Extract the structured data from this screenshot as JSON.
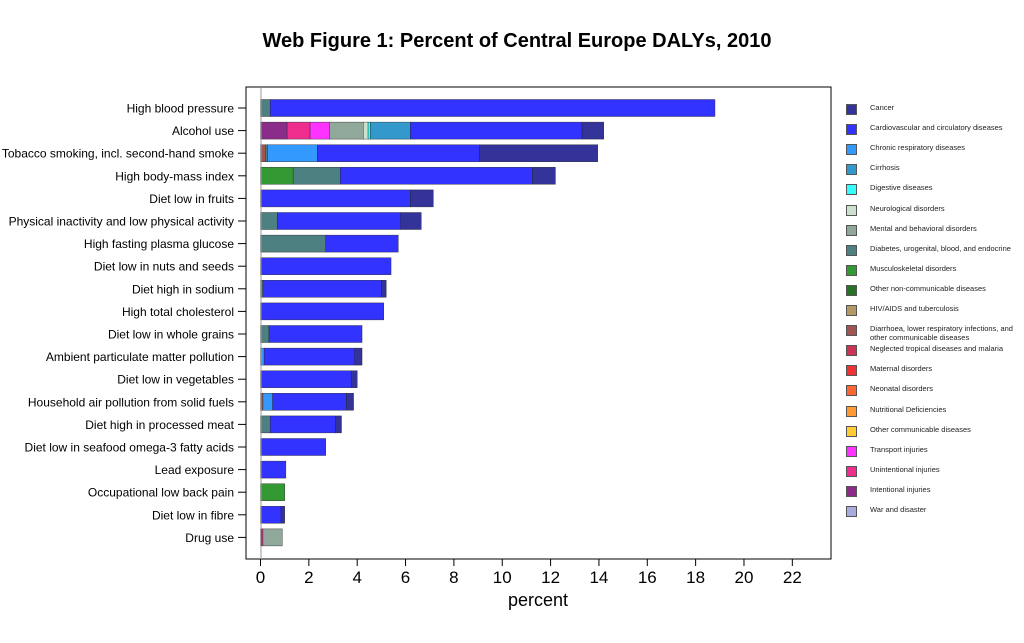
{
  "chart_data": {
    "type": "bar",
    "orientation": "horizontal",
    "stacked": true,
    "title": "Web Figure 1: Percent of Central Europe DALYs, 2010",
    "xlabel": "percent",
    "xlim": [
      -0.6,
      23.6
    ],
    "xticks": [
      0,
      2,
      4,
      6,
      8,
      10,
      12,
      14,
      16,
      18,
      20,
      22
    ],
    "grid": false,
    "legend_position": "right",
    "categories": [
      "High blood pressure",
      "Alcohol use",
      "Tobacco smoking, incl. second-hand smoke",
      "High body-mass index",
      "Diet low in fruits",
      "Physical inactivity and low physical activity",
      "High fasting plasma glucose",
      "Diet low in nuts and seeds",
      "Diet high in sodium",
      "High total cholesterol",
      "Diet low in whole grains",
      "Ambient particulate matter pollution",
      "Diet low in vegetables",
      "Household air pollution from solid fuels",
      "Diet high in processed meat",
      "Diet low in seafood omega-3 fatty acids",
      "Lead exposure",
      "Occupational low back pain",
      "Diet low in fibre",
      "Drug use"
    ],
    "series": [
      {
        "name": "Intentional injuries",
        "color": "#8b2c8b",
        "values": [
          0,
          1.1,
          0,
          0,
          0,
          0,
          0,
          0,
          0,
          0,
          0,
          0,
          0,
          0,
          0,
          0,
          0,
          0,
          0,
          0
        ]
      },
      {
        "name": "Diarrhoea, lower respiratory infections, and other communicable diseases",
        "color": "#a05555",
        "values": [
          0,
          0,
          0.2,
          0,
          0,
          0,
          0,
          0,
          0,
          0,
          0,
          0,
          0,
          0.1,
          0,
          0,
          0,
          0,
          0,
          0.05
        ]
      },
      {
        "name": "Unintentional injuries",
        "color": "#ee2d8d",
        "values": [
          0,
          0.95,
          0,
          0,
          0,
          0,
          0,
          0,
          0,
          0,
          0,
          0,
          0,
          0,
          0,
          0,
          0,
          0,
          0,
          0.05
        ]
      },
      {
        "name": "Transport injuries",
        "color": "#ff33ff",
        "values": [
          0,
          0.8,
          0,
          0,
          0,
          0,
          0,
          0,
          0,
          0,
          0,
          0,
          0,
          0,
          0,
          0,
          0,
          0,
          0,
          0
        ]
      },
      {
        "name": "Musculoskeletal disorders",
        "color": "#339933",
        "values": [
          0,
          0,
          0,
          1.35,
          0,
          0,
          0,
          0,
          0,
          0,
          0,
          0,
          0,
          0,
          0,
          0,
          0,
          1.0,
          0,
          0
        ]
      },
      {
        "name": "Mental and behavioral disorders",
        "color": "#8fa89a",
        "values": [
          0,
          1.4,
          0,
          0,
          0,
          0,
          0,
          0,
          0,
          0,
          0,
          0,
          0,
          0,
          0,
          0,
          0,
          0,
          0,
          0.8
        ]
      },
      {
        "name": "Neurological disorders",
        "color": "#cce0cc",
        "values": [
          0,
          0.2,
          0,
          0,
          0,
          0,
          0,
          0,
          0,
          0,
          0,
          0,
          0,
          0,
          0,
          0,
          0,
          0,
          0,
          0
        ]
      },
      {
        "name": "Digestive diseases",
        "color": "#33ffff",
        "values": [
          0,
          0.1,
          0,
          0,
          0,
          0,
          0,
          0,
          0,
          0,
          0,
          0,
          0,
          0,
          0,
          0,
          0,
          0,
          0,
          0
        ]
      },
      {
        "name": "Cirrhosis",
        "color": "#3399cc",
        "values": [
          0,
          1.65,
          0,
          0,
          0,
          0,
          0,
          0,
          0,
          0,
          0,
          0,
          0,
          0,
          0,
          0,
          0,
          0,
          0,
          0
        ]
      },
      {
        "name": "Diabetes, urogenital, blood, and endocrine",
        "color": "#4d8080",
        "values": [
          0.4,
          0,
          0.1,
          1.95,
          0,
          0.7,
          2.7,
          0,
          0.1,
          0,
          0.35,
          0,
          0,
          0,
          0.4,
          0,
          0,
          0,
          0,
          0
        ]
      },
      {
        "name": "Chronic respiratory diseases",
        "color": "#3399ff",
        "values": [
          0,
          0,
          2.05,
          0,
          0,
          0,
          0,
          0,
          0,
          0,
          0,
          0.15,
          0,
          0.4,
          0,
          0,
          0,
          0,
          0,
          0
        ]
      },
      {
        "name": "Cardiovascular and circulatory diseases",
        "color": "#3333ff",
        "values": [
          18.4,
          7.1,
          6.7,
          7.95,
          6.2,
          5.1,
          3.0,
          5.4,
          4.9,
          5.1,
          3.85,
          3.75,
          3.75,
          3.05,
          2.7,
          2.7,
          1.05,
          0,
          0.85,
          0
        ]
      },
      {
        "name": "Cancer",
        "color": "#333399",
        "values": [
          0,
          0.9,
          4.9,
          0.95,
          0.95,
          0.85,
          0,
          0,
          0.2,
          0,
          0,
          0.3,
          0.25,
          0.3,
          0.25,
          0,
          0,
          0,
          0.15,
          0
        ]
      }
    ],
    "legend": [
      {
        "label": "Cancer",
        "color": "#333399"
      },
      {
        "label": "Cardiovascular and circulatory diseases",
        "color": "#3333ff"
      },
      {
        "label": "Chronic respiratory diseases",
        "color": "#3399ff"
      },
      {
        "label": "Cirrhosis",
        "color": "#3399cc"
      },
      {
        "label": "Digestive diseases",
        "color": "#33ffff"
      },
      {
        "label": "Neurological disorders",
        "color": "#cce0cc"
      },
      {
        "label": "Mental and behavioral disorders",
        "color": "#8fa89a"
      },
      {
        "label": "Diabetes, urogenital, blood, and endocrine",
        "color": "#4d8080"
      },
      {
        "label": "Musculoskeletal disorders",
        "color": "#339933"
      },
      {
        "label": "Other non-communicable diseases",
        "color": "#267326"
      },
      {
        "label": "HIV/AIDS and tuberculosis",
        "color": "#b39966"
      },
      {
        "label": "Diarrhoea, lower respiratory infections, and other communicable diseases",
        "color": "#a05555"
      },
      {
        "label": "Neglected tropical diseases and malaria",
        "color": "#cc3355"
      },
      {
        "label": "Maternal disorders",
        "color": "#ee3333"
      },
      {
        "label": "Neonatal disorders",
        "color": "#ff6633"
      },
      {
        "label": "Nutritional Deficiencies",
        "color": "#ff9933"
      },
      {
        "label": "Other communicable diseases",
        "color": "#ffcc33"
      },
      {
        "label": "Transport injuries",
        "color": "#ff33ff"
      },
      {
        "label": "Unintentional injuries",
        "color": "#ee2d8d"
      },
      {
        "label": "Intentional injuries",
        "color": "#8b2c8b"
      },
      {
        "label": "War and disaster",
        "color": "#aaaadd"
      }
    ]
  }
}
